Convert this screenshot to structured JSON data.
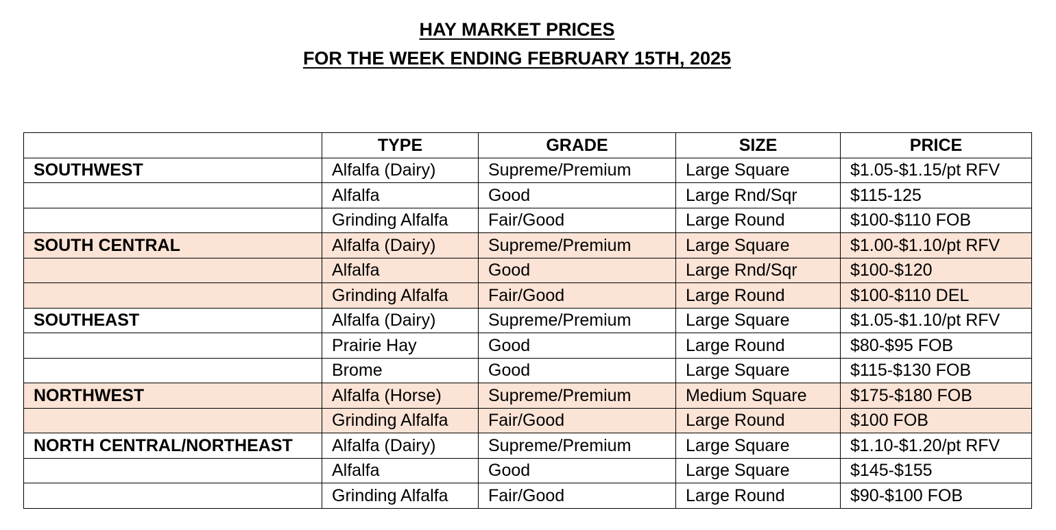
{
  "title": {
    "line1": "HAY MARKET PRICES",
    "line2": "FOR THE WEEK ENDING FEBRUARY 15TH, 2025"
  },
  "table": {
    "headers": [
      "",
      "TYPE",
      "GRADE",
      "SIZE",
      "PRICE"
    ],
    "rows": [
      {
        "region": "SOUTHWEST",
        "type": "Alfalfa (Dairy)",
        "grade": "Supreme/Premium",
        "size": "Large Square",
        "price": "$1.05-$1.15/pt RFV",
        "shaded": false
      },
      {
        "region": "",
        "type": "Alfalfa",
        "grade": "Good",
        "size": "Large Rnd/Sqr",
        "price": "$115-125",
        "shaded": false
      },
      {
        "region": "",
        "type": "Grinding Alfalfa",
        "grade": "Fair/Good",
        "size": "Large Round",
        "price": "$100-$110 FOB",
        "shaded": false
      },
      {
        "region": "SOUTH CENTRAL",
        "type": "Alfalfa (Dairy)",
        "grade": "Supreme/Premium",
        "size": "Large Square",
        "price": "$1.00-$1.10/pt RFV",
        "shaded": true
      },
      {
        "region": "",
        "type": "Alfalfa",
        "grade": "Good",
        "size": "Large Rnd/Sqr",
        "price": "$100-$120",
        "shaded": true
      },
      {
        "region": "",
        "type": "Grinding Alfalfa",
        "grade": "Fair/Good",
        "size": "Large Round",
        "price": "$100-$110 DEL",
        "shaded": true
      },
      {
        "region": "SOUTHEAST",
        "type": "Alfalfa (Dairy)",
        "grade": "Supreme/Premium",
        "size": "Large Square",
        "price": "$1.05-$1.10/pt RFV",
        "shaded": false
      },
      {
        "region": "",
        "type": "Prairie Hay",
        "grade": "Good",
        "size": "Large Round",
        "price": "$80-$95 FOB",
        "shaded": false
      },
      {
        "region": "",
        "type": "Brome",
        "grade": "Good",
        "size": "Large Square",
        "price": "$115-$130 FOB",
        "shaded": false
      },
      {
        "region": "NORTHWEST",
        "type": "Alfalfa (Horse)",
        "grade": "Supreme/Premium",
        "size": "Medium Square",
        "price": "$175-$180 FOB",
        "shaded": true
      },
      {
        "region": "",
        "type": "Grinding Alfalfa",
        "grade": "Fair/Good",
        "size": "Large Round",
        "price": "$100 FOB",
        "shaded": true
      },
      {
        "region": "NORTH CENTRAL/NORTHEAST",
        "type": "Alfalfa (Dairy)",
        "grade": "Supreme/Premium",
        "size": "Large Square",
        "price": "$1.10-$1.20/pt RFV",
        "shaded": false
      },
      {
        "region": "",
        "type": "Alfalfa",
        "grade": "Good",
        "size": "Large Square",
        "price": "$145-$155",
        "shaded": false
      },
      {
        "region": "",
        "type": "Grinding Alfalfa",
        "grade": "Fair/Good",
        "size": "Large Round",
        "price": "$90-$100 FOB",
        "shaded": false
      }
    ]
  },
  "colors": {
    "shade": "#fbe3d6",
    "border": "#000000",
    "text": "#000000"
  }
}
